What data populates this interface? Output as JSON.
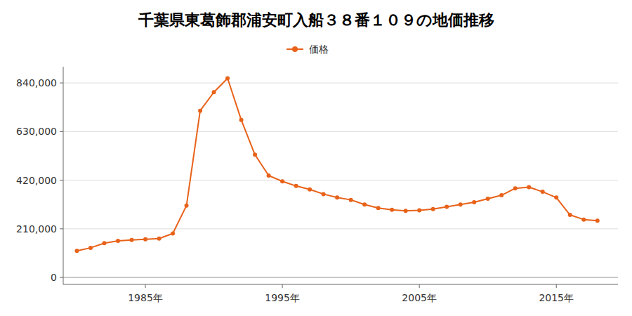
{
  "chart_data": {
    "type": "line",
    "title": "千葉県東葛飾郡浦安町入船３８番１０９の地価推移",
    "x": [
      1980,
      1981,
      1982,
      1983,
      1984,
      1985,
      1986,
      1987,
      1988,
      1989,
      1990,
      1991,
      1992,
      1993,
      1994,
      1995,
      1996,
      1997,
      1998,
      1999,
      2000,
      2001,
      2002,
      2003,
      2004,
      2005,
      2006,
      2007,
      2008,
      2009,
      2010,
      2011,
      2012,
      2013,
      2014,
      2015,
      2016,
      2017,
      2018
    ],
    "series": [
      {
        "name": "価格",
        "color": "#E8621A",
        "marker": "circle",
        "line_style": "solid",
        "values": [
          115000,
          128000,
          148000,
          158000,
          162000,
          165000,
          168000,
          190000,
          310000,
          720000,
          800000,
          860000,
          680000,
          530000,
          440000,
          415000,
          395000,
          380000,
          360000,
          345000,
          335000,
          315000,
          300000,
          292000,
          288000,
          290000,
          295000,
          305000,
          315000,
          325000,
          340000,
          355000,
          385000,
          390000,
          370000,
          345000,
          270000,
          250000,
          245000
        ]
      }
    ],
    "xlim": [
      1979,
      2019.5
    ],
    "xticks": [
      {
        "value": 1985,
        "label": "1985年"
      },
      {
        "value": 1995,
        "label": "1995年"
      },
      {
        "value": 2005,
        "label": "2005年"
      },
      {
        "value": 2015,
        "label": "2015年"
      }
    ],
    "ylim": [
      -30000,
      910000
    ],
    "yticks": [
      0,
      {
        "value": 210000,
        "label": "210,000"
      },
      {
        "value": 420000,
        "label": "420,000"
      },
      {
        "value": 630000,
        "label": "630,000"
      },
      {
        "value": 840000,
        "label": "840,000"
      }
    ],
    "grid": true,
    "legend": "top"
  }
}
